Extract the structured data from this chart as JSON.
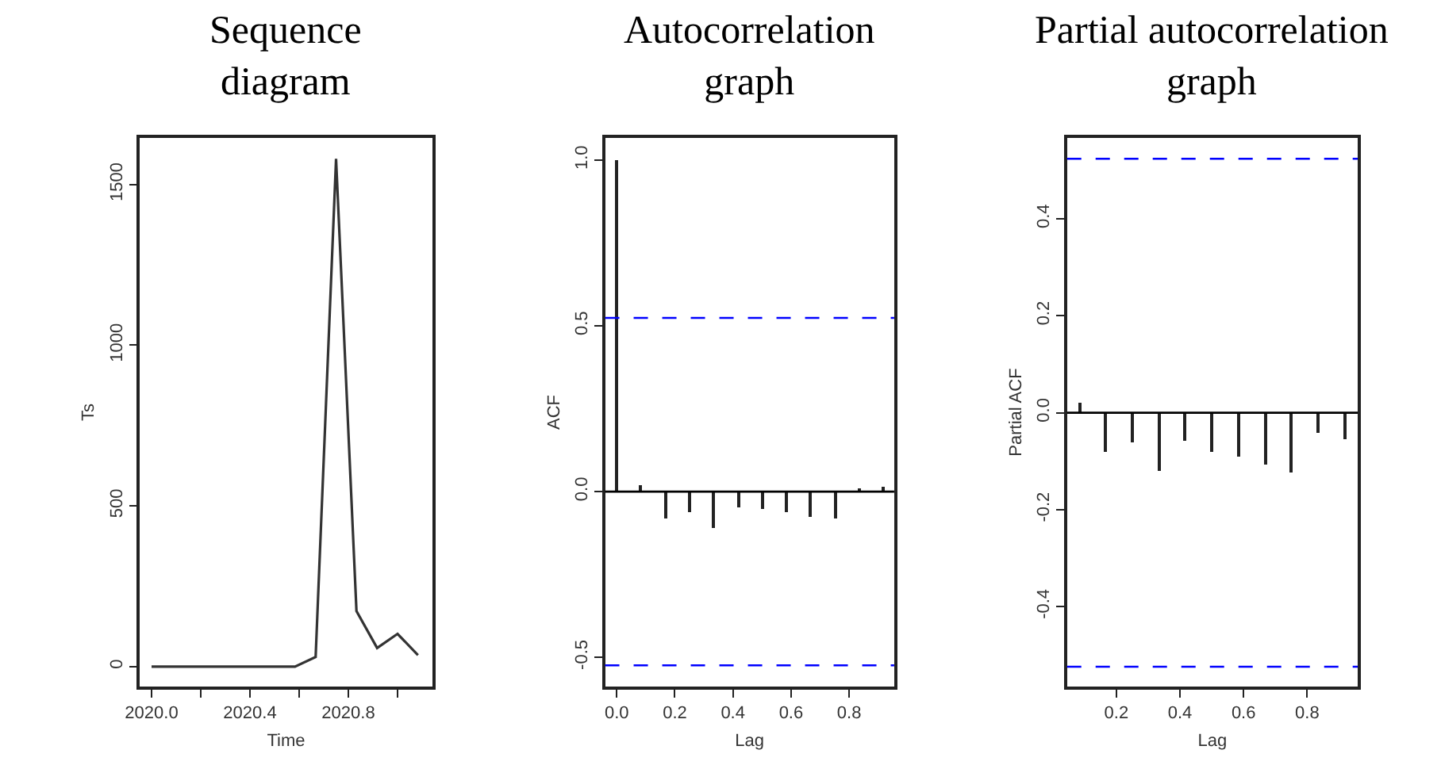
{
  "chart_data": [
    {
      "type": "line",
      "title": "Sequence\ndiagram",
      "xlabel": "Time",
      "ylabel": "Ts",
      "x": [
        2020.0,
        2020.083,
        2020.167,
        2020.25,
        2020.333,
        2020.417,
        2020.5,
        2020.583,
        2020.667,
        2020.75,
        2020.833,
        2020.917,
        2021.0,
        2021.083
      ],
      "series": [
        {
          "color": "#333333",
          "values": [
            0,
            0,
            0,
            0,
            0,
            0,
            0,
            0,
            30,
            1580,
            173,
            58,
            102,
            36
          ]
        }
      ],
      "xlim": [
        2019.953,
        2021.141
      ],
      "ylim": [
        -62,
        1645
      ],
      "xticks": [
        {
          "value": 2020,
          "label": "2020.0"
        },
        {
          "value": 2020.2,
          "label": null
        },
        2020.4,
        {
          "value": 2020.6,
          "label": null
        },
        2020.8,
        {
          "value": 2021,
          "label": null
        }
      ],
      "yticks": [
        0,
        500,
        1000,
        1500
      ]
    },
    {
      "type": "bar",
      "title": "Autocorrelation\ngraph",
      "xlabel": "Lag",
      "ylabel": "ACF",
      "x": [
        0.0,
        0.083,
        0.167,
        0.25,
        0.333,
        0.417,
        0.5,
        0.583,
        0.667,
        0.75,
        0.833,
        0.917
      ],
      "series": [
        {
          "color": "#222222",
          "values": [
            1.0,
            0.02,
            -0.083,
            -0.064,
            -0.11,
            -0.048,
            -0.054,
            -0.064,
            -0.075,
            -0.08,
            0.01,
            0.016
          ]
        }
      ],
      "xlim": [
        -0.04,
        0.955
      ],
      "ylim": [
        -0.588,
        1.067
      ],
      "xticks": [
        {
          "value": 0,
          "label": "0.0"
        },
        0.2,
        0.4,
        0.6,
        0.8
      ],
      "yticks": [
        {
          "value": -0.5,
          "label": "-0.5"
        },
        {
          "value": 0,
          "label": "0.0"
        },
        0.5,
        {
          "value": 1,
          "label": "1.0"
        }
      ],
      "ref_lines": [
        {
          "axis": "y",
          "value": 0,
          "color": "#000000",
          "line_style": "solid"
        },
        {
          "axis": "y",
          "value": 0.524,
          "color": "#0000ff",
          "line_style": "dashed"
        },
        {
          "axis": "y",
          "value": -0.524,
          "color": "#0000ff",
          "line_style": "dashed"
        }
      ]
    },
    {
      "type": "bar",
      "title": "Partial autocorrelation\ngraph",
      "xlabel": "Lag",
      "ylabel": "Partial ACF",
      "x": [
        0.083,
        0.167,
        0.25,
        0.333,
        0.417,
        0.5,
        0.583,
        0.667,
        0.75,
        0.833,
        0.917
      ],
      "series": [
        {
          "color": "#222222",
          "values": [
            0.02,
            -0.082,
            -0.061,
            -0.119,
            -0.057,
            -0.08,
            -0.09,
            -0.108,
            -0.122,
            -0.043,
            -0.054
          ]
        }
      ],
      "xlim": [
        0.045,
        0.959
      ],
      "ylim": [
        -0.565,
        0.567
      ],
      "xticks": [
        0.2,
        0.4,
        0.6,
        0.8
      ],
      "yticks": [
        -0.4,
        -0.2,
        {
          "value": 0,
          "label": "0.0"
        },
        0.2,
        0.4
      ],
      "ref_lines": [
        {
          "axis": "y",
          "value": 0,
          "color": "#000000",
          "line_style": "solid"
        },
        {
          "axis": "y",
          "value": 0.524,
          "color": "#0000ff",
          "line_style": "dashed"
        },
        {
          "axis": "y",
          "value": -0.524,
          "color": "#0000ff",
          "line_style": "dashed"
        }
      ]
    }
  ]
}
